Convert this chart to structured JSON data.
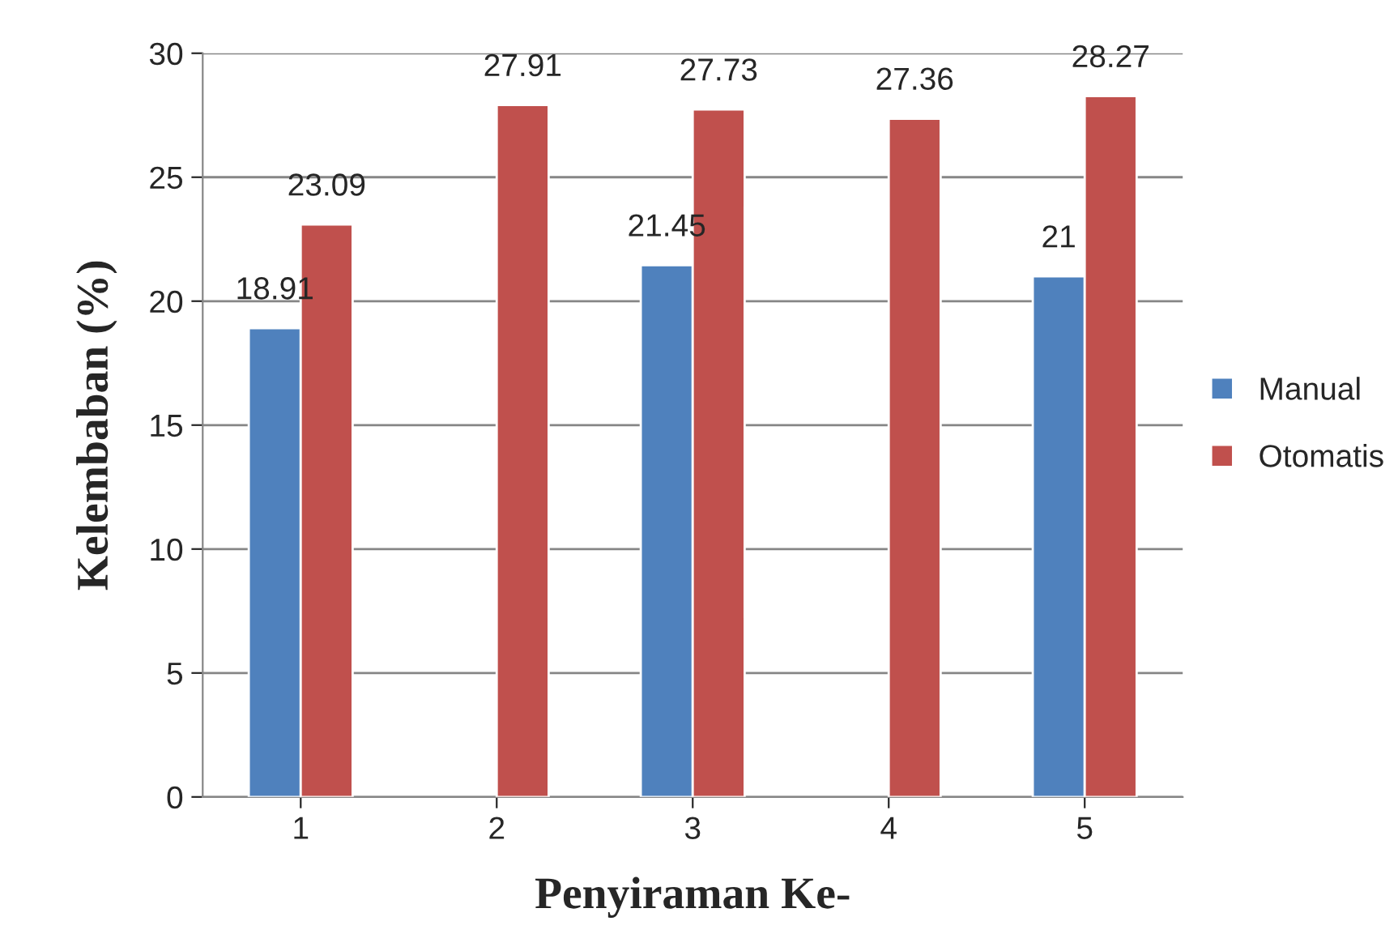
{
  "chart_data": {
    "type": "bar",
    "xlabel": "Penyiraman Ke-",
    "ylabel": "Kelembaban (%)",
    "categories": [
      "1",
      "2",
      "3",
      "4",
      "5"
    ],
    "series": [
      {
        "name": "Manual",
        "color": "#4f81bd",
        "values": [
          18.91,
          null,
          21.45,
          null,
          21
        ]
      },
      {
        "name": "Otomatis",
        "color": "#c0504d",
        "values": [
          23.09,
          27.91,
          27.73,
          27.36,
          28.27
        ]
      }
    ],
    "ylim": [
      0,
      30
    ],
    "yticks": [
      0,
      5,
      10,
      15,
      20,
      25,
      30
    ],
    "grid": "y",
    "legend": "right",
    "data_labels": true
  }
}
